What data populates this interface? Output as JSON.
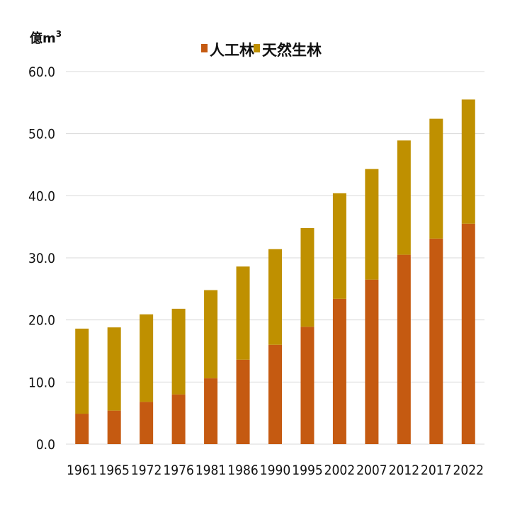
{
  "chart_data": {
    "type": "bar",
    "stacked": true,
    "unit_label": "億m",
    "unit_superscript": "3",
    "categories": [
      "1961",
      "1965",
      "1972",
      "1976",
      "1981",
      "1986",
      "1990",
      "1995",
      "2002",
      "2007",
      "2012",
      "2017",
      "2022"
    ],
    "series": [
      {
        "name": "人工林",
        "color": "#c55a11",
        "values": [
          4.9,
          5.4,
          6.8,
          8.0,
          10.6,
          13.6,
          16.0,
          18.9,
          23.4,
          26.5,
          30.5,
          33.1,
          35.5
        ]
      },
      {
        "name": "天然生林",
        "color": "#bf9000",
        "values": [
          13.7,
          13.4,
          14.1,
          13.8,
          14.2,
          15.0,
          15.4,
          15.9,
          17.0,
          17.8,
          18.4,
          19.3,
          20.0
        ]
      }
    ],
    "yticks": [
      "0.0",
      "10.0",
      "20.0",
      "30.0",
      "40.0",
      "50.0",
      "60.0"
    ],
    "ylim": [
      0,
      60
    ],
    "grid": true,
    "legend_position": "top"
  }
}
